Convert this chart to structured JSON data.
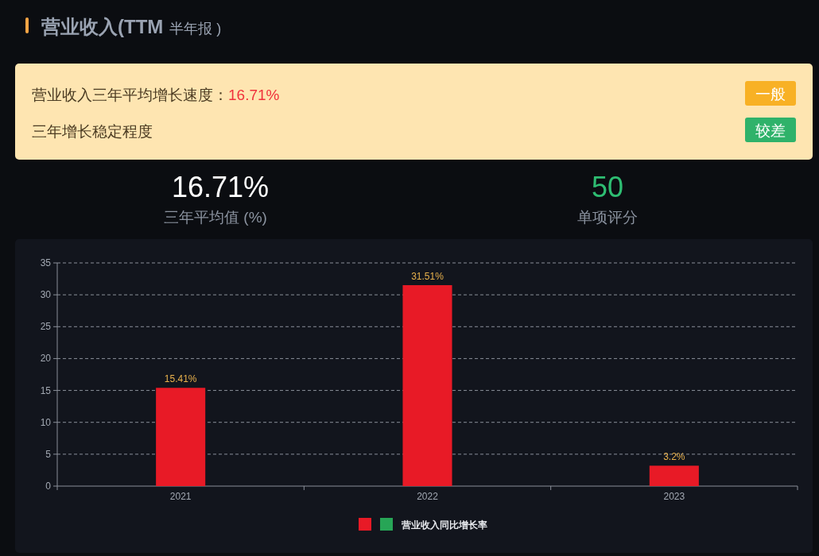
{
  "chart_data": [
    {
      "type": "other",
      "title": "营业收入(TTM",
      "subtitle": "半年报 )",
      "annotations": [
        "营业收入三年平均增长速度：",
        "16.71%",
        "一般",
        "三年增长稳定程度",
        "较差",
        "16.71%",
        "三年平均值 (%)",
        "50",
        "单项评分"
      ]
    },
    {
      "type": "bar",
      "categories": [
        "2021",
        "2022",
        "2023"
      ],
      "series": [
        {
          "name": "营业收入同比增长率",
          "color": "#e81a26",
          "values": [
            15.41,
            31.51,
            3.2
          ],
          "value_labels": [
            "15.41%",
            "31.51%",
            "3.2%"
          ]
        },
        {
          "color": "#27a556",
          "values": [
            null,
            null,
            null
          ]
        }
      ],
      "ylim": [
        0,
        35
      ],
      "yticks": [
        0,
        5,
        10,
        15,
        20,
        25,
        30,
        35
      ],
      "grid": "y",
      "legend": "bottom"
    }
  ]
}
